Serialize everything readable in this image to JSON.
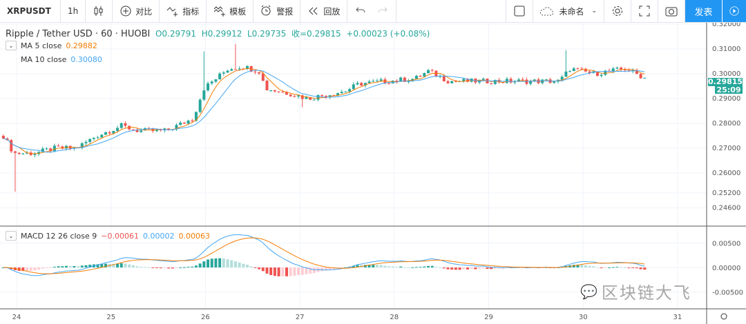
{
  "toolbar": {
    "symbol": "XRPUSDT",
    "interval": "1h",
    "compare": "对比",
    "indicators": "指标",
    "templates": "模板",
    "alert": "警报",
    "replay": "回放",
    "layout_name": "未命名",
    "publish": "发表"
  },
  "legend": {
    "title": "Ripple / Tether USD · 60 · HUOBI",
    "o": "O0.29791",
    "h": "H0.29912",
    "l": "L0.29735",
    "c": "收=0.29815",
    "chg": "+0.00023 (+0.08%)",
    "ma5_label": "MA  5 close",
    "ma5_value": "0.29882",
    "ma10_label": "MA  10 close",
    "ma10_value": "0.30080",
    "macd_label": "MACD 12 26 close 9",
    "macd_hist": "−0.00061",
    "macd_line": "0.00002",
    "macd_signal": "0.00063"
  },
  "price_axis": [
    "0.32000",
    "0.31000",
    "0.30000",
    "0.29000",
    "0.28000",
    "0.27000",
    "0.26000",
    "0.25200",
    "0.24600"
  ],
  "macd_axis": [
    "0.00500",
    "0.00000",
    "-0.00500"
  ],
  "date_axis": [
    "24",
    "25",
    "26",
    "27",
    "28",
    "29",
    "30",
    "31"
  ],
  "current_price": "0.29815",
  "countdown": "25:09",
  "watermark": "区块链大飞",
  "colors": {
    "up": "#26a69a",
    "down": "#ef5350",
    "ma5": "#f57c00",
    "ma10": "#42a5f5",
    "accent": "#2196f3"
  },
  "chart_data": {
    "type": "candlestick",
    "interval_hours": 1,
    "price_path": [
      [
        23.86,
        0.275
      ],
      [
        23.97,
        0.268
      ],
      [
        24.19,
        0.268
      ],
      [
        24.41,
        0.27
      ],
      [
        24.63,
        0.27
      ],
      [
        24.85,
        0.275
      ],
      [
        25.11,
        0.279
      ],
      [
        25.29,
        0.277
      ],
      [
        25.58,
        0.277
      ],
      [
        25.87,
        0.282
      ],
      [
        25.98,
        0.294
      ],
      [
        26.24,
        0.302
      ],
      [
        26.39,
        0.303
      ],
      [
        26.57,
        0.301
      ],
      [
        26.64,
        0.294
      ],
      [
        26.9,
        0.292
      ],
      [
        27.08,
        0.29
      ],
      [
        27.34,
        0.292
      ],
      [
        27.48,
        0.293
      ],
      [
        27.63,
        0.296
      ],
      [
        27.92,
        0.297
      ],
      [
        28.22,
        0.298
      ],
      [
        28.36,
        0.301
      ],
      [
        28.58,
        0.297
      ],
      [
        28.95,
        0.297
      ],
      [
        29.39,
        0.297
      ],
      [
        29.75,
        0.297
      ],
      [
        29.86,
        0.302
      ],
      [
        30.12,
        0.3
      ],
      [
        30.27,
        0.301
      ],
      [
        30.45,
        0.302
      ],
      [
        30.67,
        0.298
      ]
    ],
    "wicks": [
      [
        23.97,
        0.2525
      ],
      [
        26.0,
        0.309
      ],
      [
        26.3,
        0.312
      ],
      [
        29.8,
        0.3095
      ],
      [
        27.02,
        0.2865
      ]
    ]
  }
}
